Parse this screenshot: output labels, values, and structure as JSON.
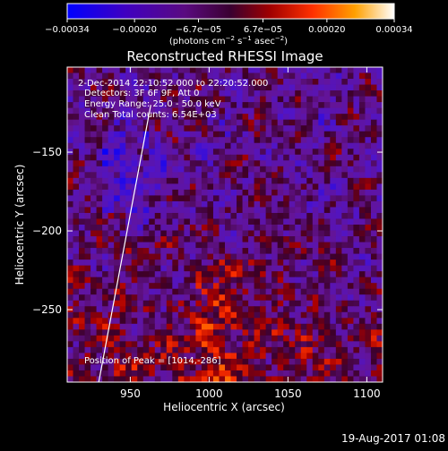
{
  "chart_data": {
    "type": "heatmap",
    "title": "Reconstructed RHESSI Image",
    "xlabel": "Heliocentric X (arcsec)",
    "ylabel": "Heliocentric Y (arcsec)",
    "xlim": [
      910,
      1110
    ],
    "ylim": [
      -296,
      -96
    ],
    "x_ticks": [
      {
        "value": 950,
        "label": "950"
      },
      {
        "value": 1000,
        "label": "1000"
      },
      {
        "value": 1050,
        "label": "1050"
      },
      {
        "value": 1100,
        "label": "1100"
      }
    ],
    "y_ticks": [
      {
        "value": -150,
        "label": "−150"
      },
      {
        "value": -200,
        "label": "−200"
      },
      {
        "value": -250,
        "label": "−250"
      }
    ],
    "colorbar": {
      "range": [
        -0.00034,
        0.00034
      ],
      "ticks": [
        {
          "value": -0.00034,
          "label": "−0.00034"
        },
        {
          "value": -0.0002,
          "label": "−0.00020"
        },
        {
          "value": -6.7e-05,
          "label": "−6.7e−05"
        },
        {
          "value": 6.7e-05,
          "label": "6.7e−05"
        },
        {
          "value": 0.0002,
          "label": "0.00020"
        },
        {
          "value": 0.00034,
          "label": "0.00034"
        }
      ],
      "units_main": "(photons cm",
      "units_sup1": "−2",
      "units_mid": " s",
      "units_sup2": "−1",
      "units_mid2": " asec",
      "units_sup3": "−2",
      "units_end": ")"
    },
    "annotations": [
      "2-Dec-2014 22:10:52.000 to 22:20:52.000",
      "Detectors: 3F 6F 9F, Att 0",
      "Energy Range: 25.0 - 50.0 keV",
      "Clean    Total counts: 6.54E+03"
    ],
    "peak_label": "Position of Peak = [1014,-286]",
    "limb_line": [
      [
        930,
        -296
      ],
      [
        963,
        -120
      ]
    ],
    "grid": false
  },
  "footer": {
    "date": "19-Aug-2017 01:08"
  }
}
